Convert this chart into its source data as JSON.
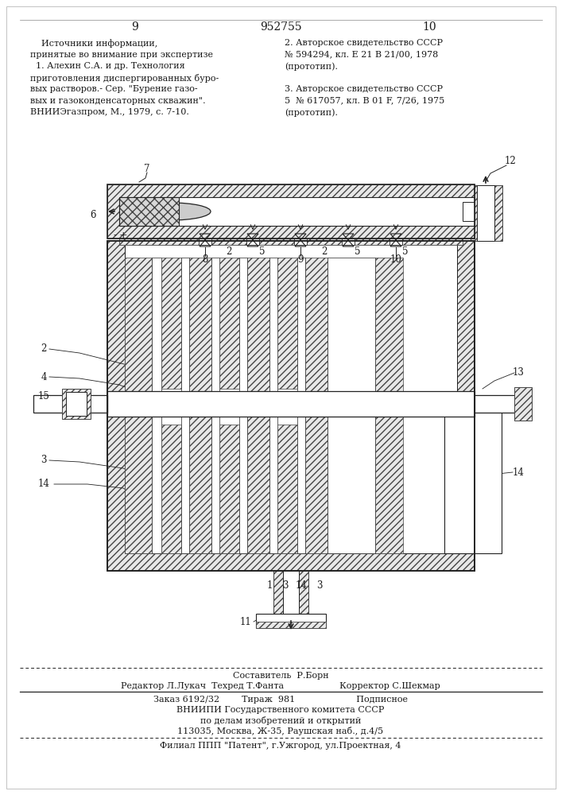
{
  "page_number_left": "9",
  "page_number_center": "952755",
  "page_number_right": "10",
  "text_left_col": [
    "    Источники информации,",
    "принятые во внимание при экспертизе",
    "  1. Алехин С.А. и др. Технология",
    "приготовления диспергированных буро-",
    "вых растворов.- Сер. \"Бурение газо-",
    "вых и газоконденсаторных скважин\".",
    "ВНИИЭгазпром, М., 1979, с. 7-10."
  ],
  "text_right_col": [
    "2. Авторское свидетельство СССР",
    "№ 594294, кл. Е 21 В 21/00, 1978",
    "(прототип).",
    "",
    "3. Авторское свидетельство СССР",
    "5  № 617057, кл. В 01 F, 7/26, 1975",
    "(прототип)."
  ],
  "footer_line1": "Составитель  Р.Борн",
  "footer_line2": "Редактор Л.Лукач  Техред Т.Фанта                    Корректор С.Шекмар",
  "footer_line3": "Заказ 6192/32        Тираж  981                      Подписное",
  "footer_line4": "ВНИИПИ Государственного комитета СССР",
  "footer_line5": "по делам изобретений и открытий",
  "footer_line6": "113035, Москва, Ж-35, Раушская наб., д.4/5",
  "footer_line7": "Филиал ППП \"Патент\", г.Ужгород, ул.Проектная, 4",
  "bg_color": "#ffffff",
  "text_color": "#1a1a1a",
  "line_color": "#222222",
  "hatch_color": "#444444",
  "hatch_bg": "#e8e8e8"
}
